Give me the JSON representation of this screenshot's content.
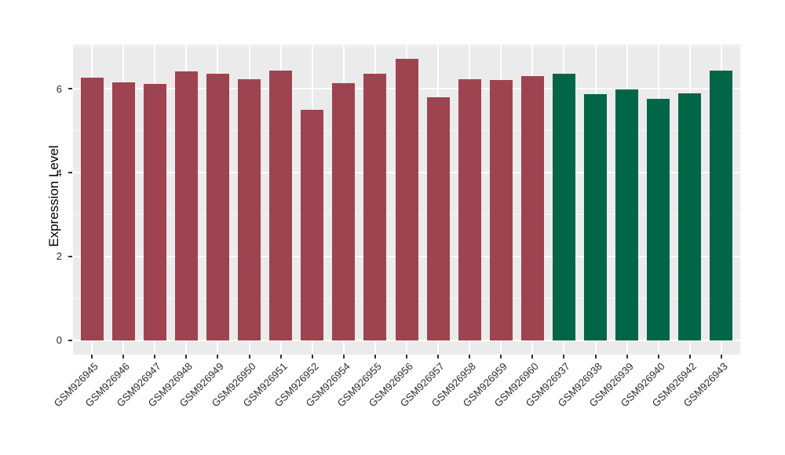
{
  "figure": {
    "kind": "ggplot-style grouped expression bar chart",
    "background": "#ffffff"
  },
  "chart_data": {
    "type": "bar",
    "title": "",
    "xlabel": "",
    "ylabel": "Expression Level",
    "ylim": [
      0,
      7.05
    ],
    "yticks": [
      0,
      2,
      4,
      6
    ],
    "yticks_minor": [
      1,
      3,
      5,
      7
    ],
    "grid": "white major and minor horizontal lines plus vertical lines at category centers on grey panel",
    "legend": "none",
    "x_label_rotation_deg": 45,
    "bars": [
      {
        "label": "GSM926945",
        "value": 6.26,
        "color": "#9d4450"
      },
      {
        "label": "GSM926946",
        "value": 6.16,
        "color": "#9d4450"
      },
      {
        "label": "GSM926947",
        "value": 6.11,
        "color": "#9d4450"
      },
      {
        "label": "GSM926948",
        "value": 6.42,
        "color": "#9d4450"
      },
      {
        "label": "GSM926949",
        "value": 6.35,
        "color": "#9d4450"
      },
      {
        "label": "GSM926950",
        "value": 6.22,
        "color": "#9d4450"
      },
      {
        "label": "GSM926951",
        "value": 6.43,
        "color": "#9d4450"
      },
      {
        "label": "GSM926952",
        "value": 5.49,
        "color": "#9d4450"
      },
      {
        "label": "GSM926954",
        "value": 6.13,
        "color": "#9d4450"
      },
      {
        "label": "GSM926955",
        "value": 6.36,
        "color": "#9d4450"
      },
      {
        "label": "GSM926956",
        "value": 6.72,
        "color": "#9d4450"
      },
      {
        "label": "GSM926957",
        "value": 5.79,
        "color": "#9d4450"
      },
      {
        "label": "GSM926958",
        "value": 6.23,
        "color": "#9d4450"
      },
      {
        "label": "GSM926959",
        "value": 6.2,
        "color": "#9d4450"
      },
      {
        "label": "GSM926960",
        "value": 6.31,
        "color": "#9d4450"
      },
      {
        "label": "GSM926937",
        "value": 6.36,
        "color": "#006647"
      },
      {
        "label": "GSM926938",
        "value": 5.87,
        "color": "#006647"
      },
      {
        "label": "GSM926939",
        "value": 5.98,
        "color": "#006647"
      },
      {
        "label": "GSM926940",
        "value": 5.75,
        "color": "#006647"
      },
      {
        "label": "GSM926942",
        "value": 5.89,
        "color": "#006647"
      },
      {
        "label": "GSM926943",
        "value": 6.43,
        "color": "#006647"
      }
    ],
    "group_colors": {
      "left_group": "#9d4450",
      "right_group": "#006647"
    }
  },
  "colors": {
    "panel_bg": "#EBEBEB",
    "grid": "#FFFFFF",
    "bar_red": "#9d4450",
    "bar_green": "#006647",
    "axis_text": "#2b2b2b",
    "axis_title": "#000000",
    "tick_mark": "#333333"
  }
}
